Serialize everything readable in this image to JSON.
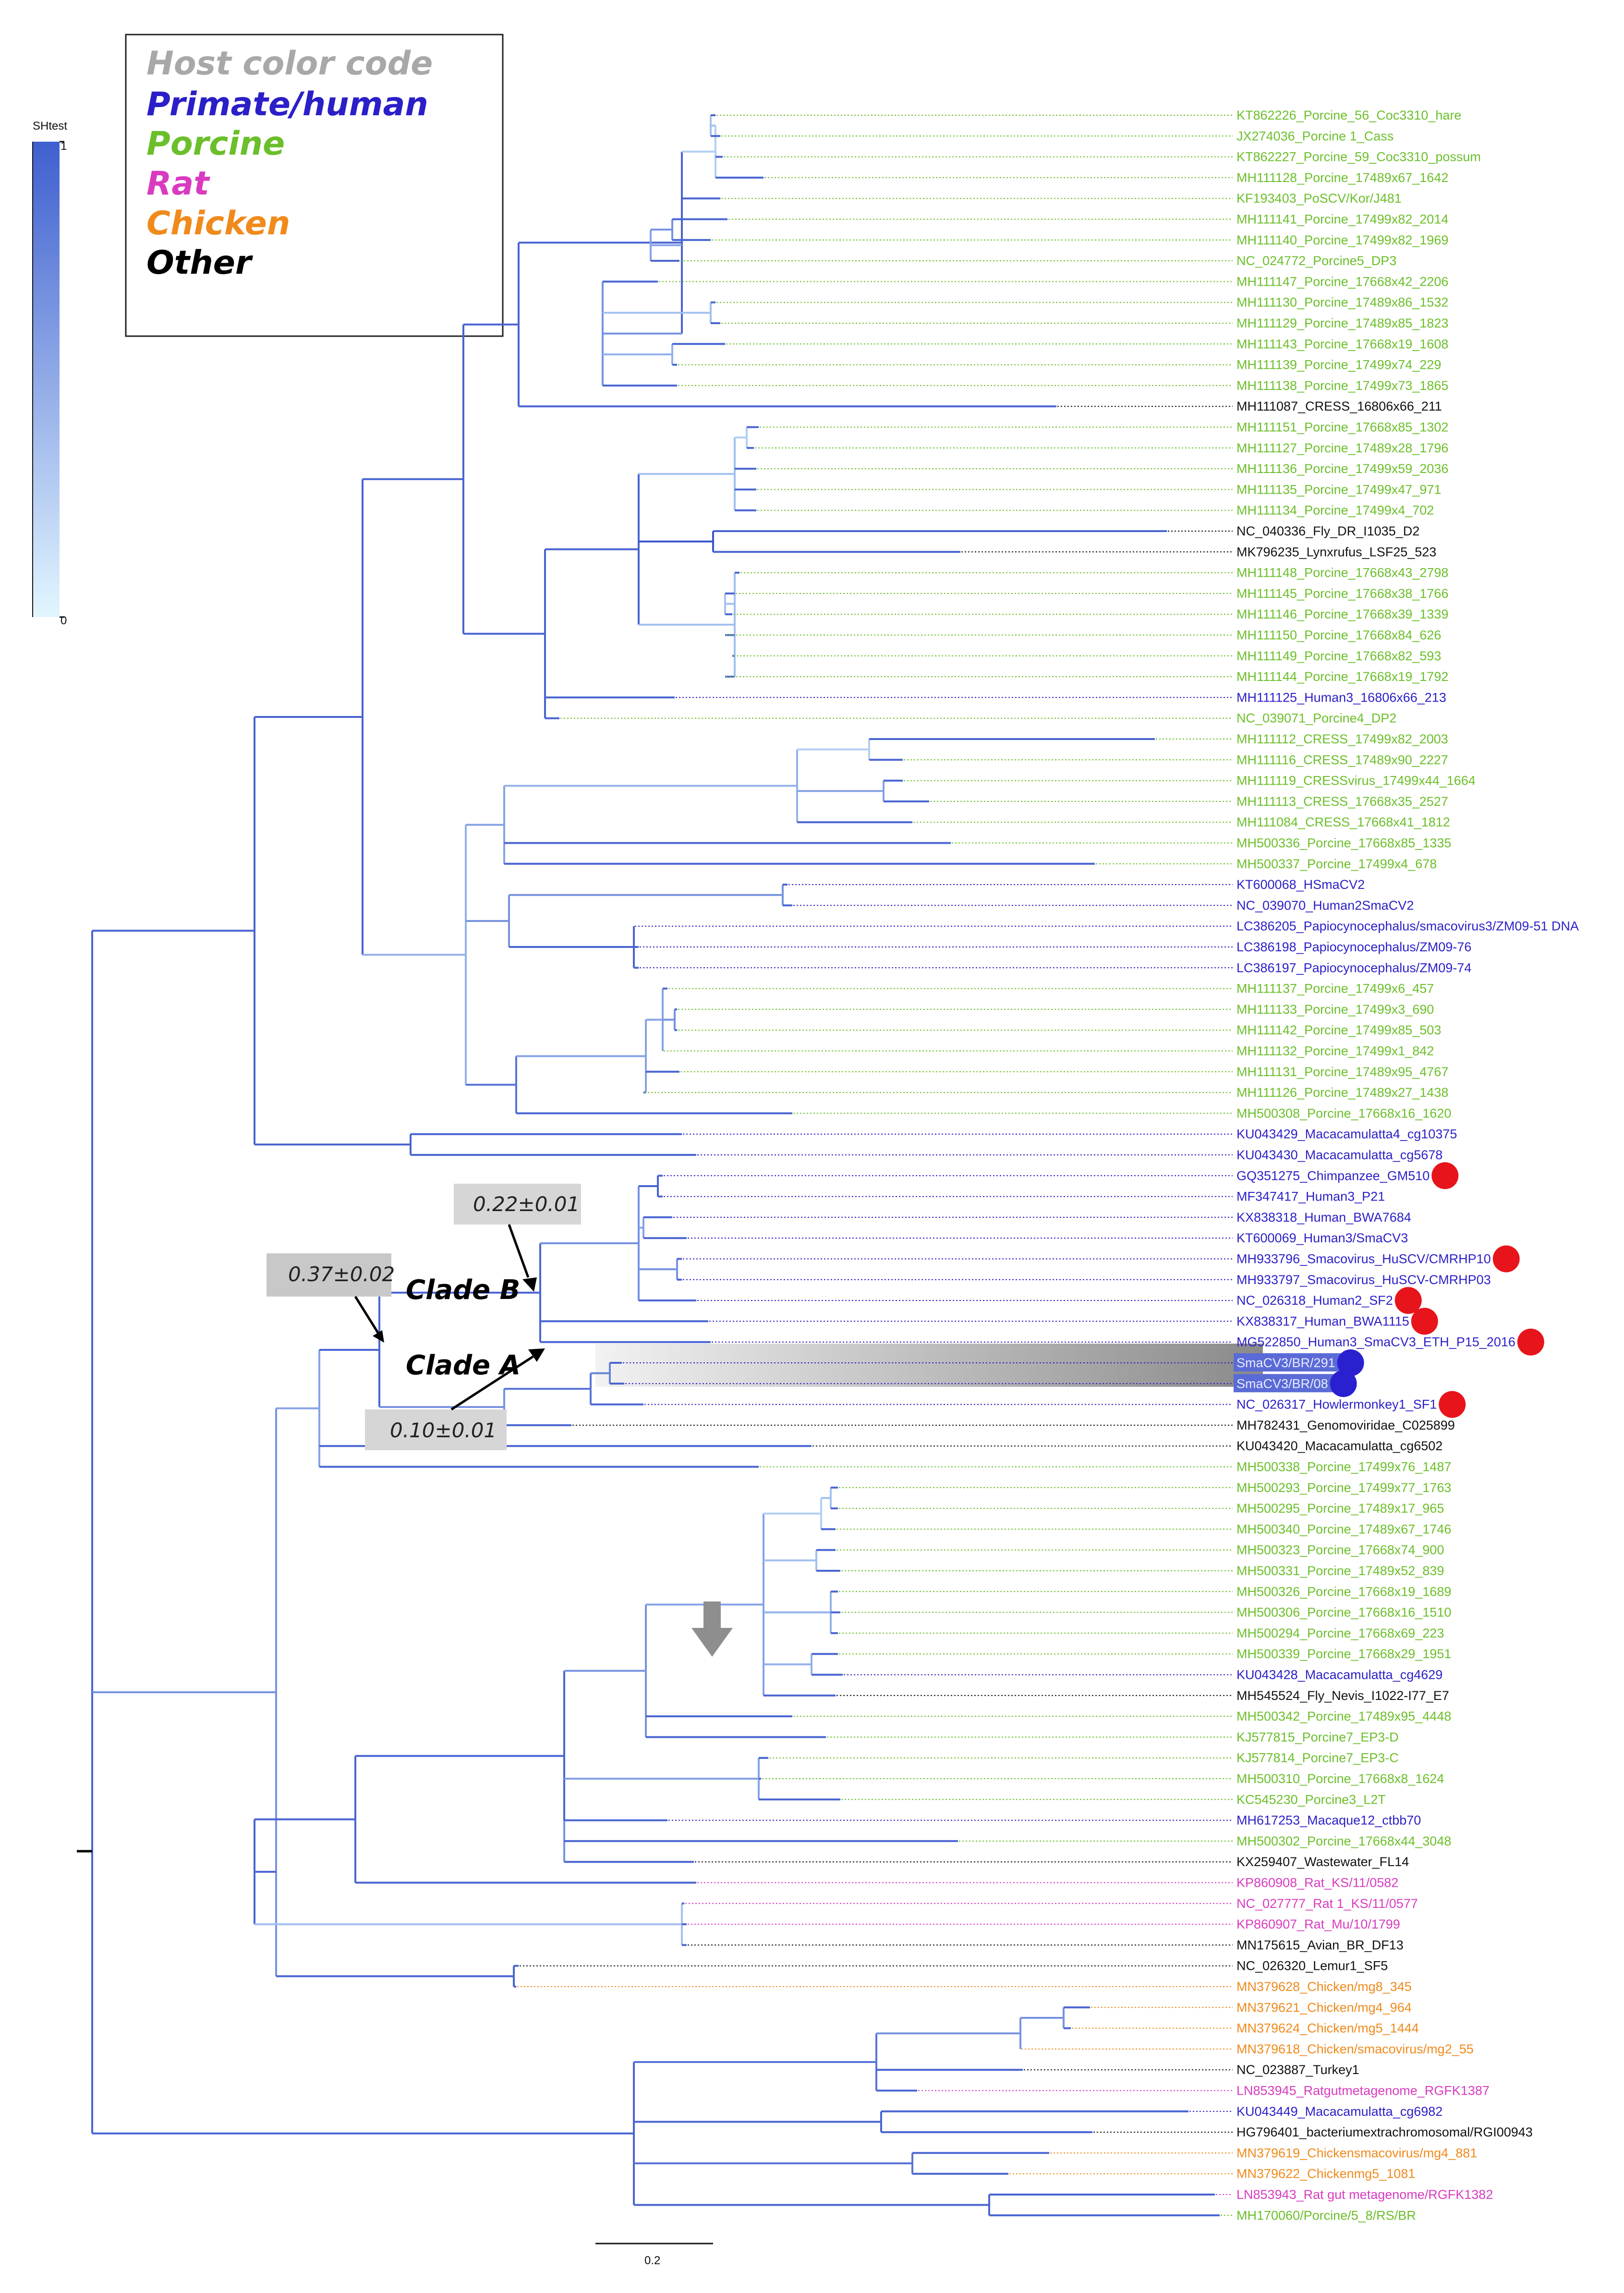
{
  "legend": {
    "title": "Host color code",
    "items": [
      {
        "label": "Primate/human",
        "color": "#2b1fc8"
      },
      {
        "label": "Porcine",
        "color": "#6bbf2a"
      },
      {
        "label": "Rat",
        "color": "#d93bc0"
      },
      {
        "label": "Chicken",
        "color": "#f08a1c"
      },
      {
        "label": "Other",
        "color": "#000000"
      }
    ],
    "title_color": "#a8a8a8"
  },
  "colorbar": {
    "label": "SHtest",
    "max": "1",
    "min": "0",
    "top_color": "#3f5fcf",
    "bottom_color": "#e2f6ff"
  },
  "scale_bar": {
    "label": "0.2"
  },
  "clades": {
    "clade_a": "Clade A",
    "clade_b": "Clade B",
    "annotation_ab": "0.37±0.02",
    "annotation_b": "0.22±0.01",
    "annotation_a": "0.10±0.01"
  },
  "host_colors": {
    "P": "#6bbf2a",
    "H": "#2b1fc8",
    "R": "#d93bc0",
    "C": "#f08a1c",
    "O": "#111111"
  },
  "highlight_color": "#8a8a8a",
  "marker_colors": {
    "red": "#e8141c",
    "blue": "#2a20d0"
  },
  "leaves": [
    {
      "label": "KT862226_Porcine_56_Coc3310_hare",
      "host": "P"
    },
    {
      "label": "JX274036_Porcine 1_Cass",
      "host": "P"
    },
    {
      "label": "KT862227_Porcine_59_Coc3310_possum",
      "host": "P"
    },
    {
      "label": "MH111128_Porcine_17489x67_1642",
      "host": "P"
    },
    {
      "label": "KF193403_PoSCV/Kor/J481",
      "host": "P"
    },
    {
      "label": "MH111141_Porcine_17499x82_2014",
      "host": "P"
    },
    {
      "label": "MH111140_Porcine_17499x82_1969",
      "host": "P"
    },
    {
      "label": "NC_024772_Porcine5_DP3",
      "host": "P"
    },
    {
      "label": "MH111147_Porcine_17668x42_2206",
      "host": "P"
    },
    {
      "label": "MH111130_Porcine_17489x86_1532",
      "host": "P"
    },
    {
      "label": "MH111129_Porcine_17489x85_1823",
      "host": "P"
    },
    {
      "label": "MH111143_Porcine_17668x19_1608",
      "host": "P"
    },
    {
      "label": "MH111139_Porcine_17499x74_229",
      "host": "P"
    },
    {
      "label": "MH111138_Porcine_17499x73_1865",
      "host": "P"
    },
    {
      "label": "MH111087_CRESS_16806x66_211",
      "host": "O"
    },
    {
      "label": "MH111151_Porcine_17668x85_1302",
      "host": "P"
    },
    {
      "label": "MH111127_Porcine_17489x28_1796",
      "host": "P"
    },
    {
      "label": "MH111136_Porcine_17499x59_2036",
      "host": "P"
    },
    {
      "label": "MH111135_Porcine_17499x47_971",
      "host": "P"
    },
    {
      "label": "MH111134_Porcine_17499x4_702",
      "host": "P"
    },
    {
      "label": "NC_040336_Fly_DR_I1035_D2",
      "host": "O"
    },
    {
      "label": "MK796235_Lynxrufus_LSF25_523",
      "host": "O"
    },
    {
      "label": "MH111148_Porcine_17668x43_2798",
      "host": "P"
    },
    {
      "label": "MH111145_Porcine_17668x38_1766",
      "host": "P"
    },
    {
      "label": "MH111146_Porcine_17668x39_1339",
      "host": "P"
    },
    {
      "label": "MH111150_Porcine_17668x84_626",
      "host": "P"
    },
    {
      "label": "MH111149_Porcine_17668x82_593",
      "host": "P"
    },
    {
      "label": "MH111144_Porcine_17668x19_1792",
      "host": "P"
    },
    {
      "label": "MH111125_Human3_16806x66_213",
      "host": "H"
    },
    {
      "label": "NC_039071_Porcine4_DP2",
      "host": "P"
    },
    {
      "label": "MH111112_CRESS_17499x82_2003",
      "host": "P"
    },
    {
      "label": "MH111116_CRESS_17489x90_2227",
      "host": "P"
    },
    {
      "label": "MH111119_CRESSvirus_17499x44_1664",
      "host": "P"
    },
    {
      "label": "MH111113_CRESS_17668x35_2527",
      "host": "P"
    },
    {
      "label": "MH111084_CRESS_17668x41_1812",
      "host": "P"
    },
    {
      "label": "MH500336_Porcine_17668x85_1335",
      "host": "P"
    },
    {
      "label": "MH500337_Porcine_17499x4_678",
      "host": "P"
    },
    {
      "label": "KT600068_HSmaCV2",
      "host": "H"
    },
    {
      "label": "NC_039070_Human2SmaCV2",
      "host": "H"
    },
    {
      "label": "LC386205_Papiocynocephalus/smacovirus3/ZM09-51 DNA",
      "host": "H"
    },
    {
      "label": "LC386198_Papiocynocephalus/ZM09-76",
      "host": "H"
    },
    {
      "label": "LC386197_Papiocynocephalus/ZM09-74",
      "host": "H"
    },
    {
      "label": "MH111137_Porcine_17499x6_457",
      "host": "P"
    },
    {
      "label": "MH111133_Porcine_17499x3_690",
      "host": "P"
    },
    {
      "label": "MH111142_Porcine_17499x85_503",
      "host": "P"
    },
    {
      "label": "MH111132_Porcine_17499x1_842",
      "host": "P"
    },
    {
      "label": "MH111131_Porcine_17489x95_4767",
      "host": "P"
    },
    {
      "label": "MH111126_Porcine_17489x27_1438",
      "host": "P"
    },
    {
      "label": "MH500308_Porcine_17668x16_1620",
      "host": "P"
    },
    {
      "label": "KU043429_Macacamulatta4_cg10375",
      "host": "H"
    },
    {
      "label": "KU043430_Macacamulatta_cg5678",
      "host": "H"
    },
    {
      "label": "GQ351275_Chimpanzee_GM510",
      "host": "H",
      "marker": "red"
    },
    {
      "label": "MF347417_Human3_P21",
      "host": "H"
    },
    {
      "label": "KX838318_Human_BWA7684",
      "host": "H"
    },
    {
      "label": "KT600069_Human3/SmaCV3",
      "host": "H"
    },
    {
      "label": "MH933796_Smacovirus_HuSCV/CMRHP10",
      "host": "H",
      "marker": "red"
    },
    {
      "label": "MH933797_Smacovirus_HuSCV-CMRHP03",
      "host": "H"
    },
    {
      "label": "NC_026318_Human2_SF2",
      "host": "H",
      "marker": "red"
    },
    {
      "label": "KX838317_Human_BWA1115",
      "host": "H",
      "marker": "red"
    },
    {
      "label": "MG522850_Human3_SmaCV3_ETH_P15_2016",
      "host": "H",
      "marker": "red"
    },
    {
      "label": "SmaCV3/BR/291",
      "host": "H",
      "marker": "blue",
      "hl": true
    },
    {
      "label": "SmaCV3/BR/08",
      "host": "H",
      "marker": "blue",
      "hl": true
    },
    {
      "label": "NC_026317_Howlermonkey1_SF1",
      "host": "H",
      "marker": "red"
    },
    {
      "label": "MH782431_Genomoviridae_C025899",
      "host": "O"
    },
    {
      "label": "KU043420_Macacamulatta_cg6502",
      "host": "O"
    },
    {
      "label": "MH500338_Porcine_17499x76_1487",
      "host": "P"
    },
    {
      "label": "MH500293_Porcine_17499x77_1763",
      "host": "P"
    },
    {
      "label": "MH500295_Porcine_17489x17_965",
      "host": "P"
    },
    {
      "label": "MH500340_Porcine_17489x67_1746",
      "host": "P"
    },
    {
      "label": "MH500323_Porcine_17668x74_900",
      "host": "P"
    },
    {
      "label": "MH500331_Porcine_17489x52_839",
      "host": "P"
    },
    {
      "label": "MH500326_Porcine_17668x19_1689",
      "host": "P"
    },
    {
      "label": "MH500306_Porcine_17668x16_1510",
      "host": "P"
    },
    {
      "label": "MH500294_Porcine_17668x69_223",
      "host": "P"
    },
    {
      "label": "MH500339_Porcine_17668x29_1951",
      "host": "P"
    },
    {
      "label": "KU043428_Macacamulatta_cg4629",
      "host": "H"
    },
    {
      "label": "MH545524_Fly_Nevis_I1022-I77_E7",
      "host": "O"
    },
    {
      "label": "MH500342_Porcine_17489x95_4448",
      "host": "P"
    },
    {
      "label": "KJ577815_Porcine7_EP3-D",
      "host": "P"
    },
    {
      "label": "KJ577814_Porcine7_EP3-C",
      "host": "P"
    },
    {
      "label": "MH500310_Porcine_17668x8_1624",
      "host": "P"
    },
    {
      "label": "KC545230_Porcine3_L2T",
      "host": "P"
    },
    {
      "label": "MH617253_Macaque12_ctbb70",
      "host": "H"
    },
    {
      "label": "MH500302_Porcine_17668x44_3048",
      "host": "P"
    },
    {
      "label": "KX259407_Wastewater_FL14",
      "host": "O"
    },
    {
      "label": "KP860908_Rat_KS/11/0582",
      "host": "R"
    },
    {
      "label": "NC_027777_Rat 1_KS/11/0577",
      "host": "R"
    },
    {
      "label": "KP860907_Rat_Mu/10/1799",
      "host": "R"
    },
    {
      "label": "MN175615_Avian_BR_DF13",
      "host": "O"
    },
    {
      "label": "NC_026320_Lemur1_SF5",
      "host": "O"
    },
    {
      "label": "MN379628_Chicken/mg8_345",
      "host": "C"
    },
    {
      "label": "MN379621_Chicken/mg4_964",
      "host": "C"
    },
    {
      "label": "MN379624_Chicken/mg5_1444",
      "host": "C"
    },
    {
      "label": "MN379618_Chicken/smacovirus/mg2_55",
      "host": "C"
    },
    {
      "label": "NC_023887_Turkey1",
      "host": "O"
    },
    {
      "label": "LN853945_Ratgutmetagenome_RGFK1387",
      "host": "R"
    },
    {
      "label": "KU043449_Macacamulatta_cg6982",
      "host": "H"
    },
    {
      "label": "HG796401_bacteriumextrachromosomal/RGI00943",
      "host": "O"
    },
    {
      "label": "MN379619_Chickensmacovirus/mg4_881",
      "host": "C"
    },
    {
      "label": "MN379622_Chickenmg5_1081",
      "host": "C"
    },
    {
      "label": "LN853943_Rat gut metagenome/RGFK1382",
      "host": "R"
    },
    {
      "label": "MH170060/Porcine/5_8/RS/BR",
      "host": "P"
    }
  ]
}
